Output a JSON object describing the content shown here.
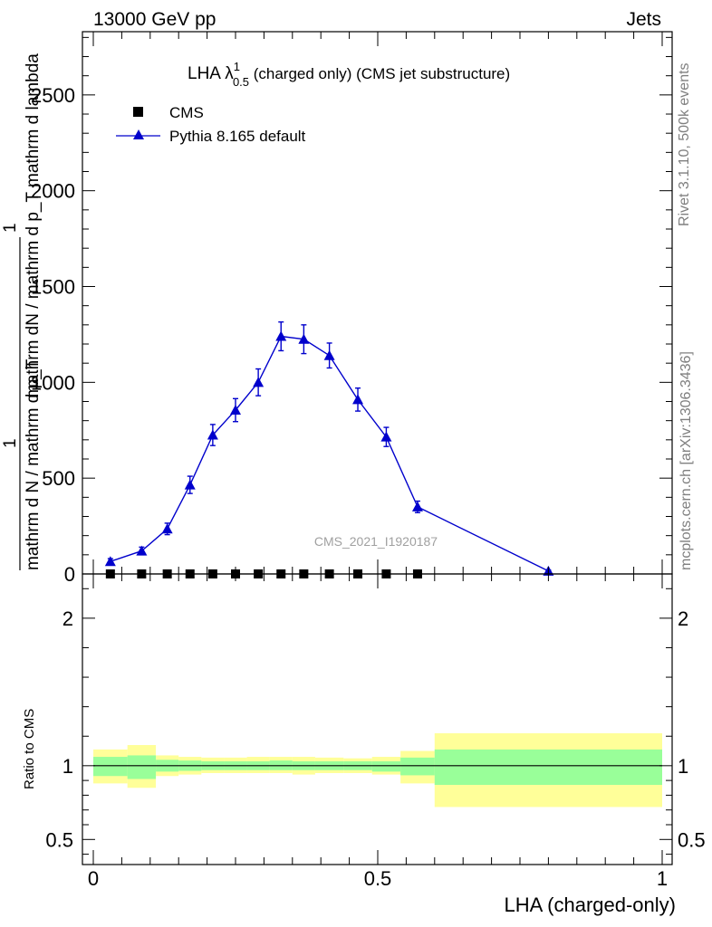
{
  "header": {
    "left": "13000 GeV pp",
    "right": "Jets"
  },
  "side_labels": {
    "rivet": "Rivet 3.1.10,  500k events",
    "mcplots": "mcplots.cern.ch [arXiv:1306.3436]"
  },
  "watermark": "CMS_2021_I1920187",
  "colors": {
    "mc": "#0000cc",
    "data": "#000000",
    "band_inner": "#99ff99",
    "band_outer": "#ffff99"
  },
  "chart_data": [
    {
      "type": "line",
      "title": "LHA λ",
      "title_sup": "1",
      "title_sub": "0.5",
      "title_rest": " (charged only) (CMS jet substructure)",
      "ylabel_main": "mathrm dN / mathrm d p_T mathrm d lambda",
      "ylabel_frac_num": "1",
      "ylabel_frac_den": "mathrm d N / mathrm d p_T",
      "xlim": [
        0,
        1
      ],
      "ylim": [
        0,
        2830
      ],
      "yticks": [
        0,
        500,
        1000,
        1500,
        2000,
        2500
      ],
      "ytick_labels": [
        "0",
        "500",
        "1000",
        "1500",
        "2000",
        "2500"
      ],
      "legend": [
        {
          "label": "CMS",
          "marker": "square"
        },
        {
          "label": "Pythia 8.165 default",
          "marker": "triangle"
        }
      ],
      "legend_position": "top-left",
      "series": [
        {
          "name": "Pythia 8.165 default",
          "x": [
            0.03,
            0.085,
            0.13,
            0.17,
            0.21,
            0.25,
            0.29,
            0.33,
            0.37,
            0.415,
            0.465,
            0.515,
            0.57,
            0.8
          ],
          "y": [
            65,
            120,
            235,
            465,
            725,
            855,
            1000,
            1240,
            1225,
            1140,
            910,
            715,
            350,
            15
          ],
          "err": [
            15,
            20,
            30,
            45,
            55,
            60,
            70,
            75,
            75,
            65,
            60,
            50,
            30,
            5
          ]
        },
        {
          "name": "CMS",
          "x": [
            0.03,
            0.085,
            0.13,
            0.17,
            0.21,
            0.25,
            0.29,
            0.33,
            0.37,
            0.415,
            0.465,
            0.515,
            0.57
          ],
          "y": [
            0,
            0,
            0,
            0,
            0,
            0,
            0,
            0,
            0,
            0,
            0,
            0,
            0
          ]
        }
      ]
    },
    {
      "type": "area",
      "ylabel": "Ratio to CMS",
      "xlabel": "LHA (charged-only)",
      "xlim": [
        0,
        1
      ],
      "ylim": [
        0.33,
        2.3
      ],
      "xticks": [
        0,
        0.5,
        1
      ],
      "xtick_labels": [
        "0",
        "0.5",
        "1"
      ],
      "yticks": [
        0.5,
        1,
        2
      ],
      "ytick_labels": [
        "0.5",
        "1",
        "2"
      ],
      "bins": [
        {
          "x0": 0.0,
          "x1": 0.06,
          "inner": [
            0.93,
            1.06
          ],
          "outer": [
            0.88,
            1.11
          ]
        },
        {
          "x0": 0.06,
          "x1": 0.11,
          "inner": [
            0.91,
            1.07
          ],
          "outer": [
            0.85,
            1.14
          ]
        },
        {
          "x0": 0.11,
          "x1": 0.15,
          "inner": [
            0.96,
            1.04
          ],
          "outer": [
            0.93,
            1.07
          ]
        },
        {
          "x0": 0.15,
          "x1": 0.19,
          "inner": [
            0.965,
            1.035
          ],
          "outer": [
            0.94,
            1.06
          ]
        },
        {
          "x0": 0.19,
          "x1": 0.23,
          "inner": [
            0.97,
            1.03
          ],
          "outer": [
            0.95,
            1.055
          ]
        },
        {
          "x0": 0.23,
          "x1": 0.27,
          "inner": [
            0.97,
            1.03
          ],
          "outer": [
            0.95,
            1.055
          ]
        },
        {
          "x0": 0.27,
          "x1": 0.31,
          "inner": [
            0.97,
            1.03
          ],
          "outer": [
            0.95,
            1.06
          ]
        },
        {
          "x0": 0.31,
          "x1": 0.35,
          "inner": [
            0.97,
            1.035
          ],
          "outer": [
            0.95,
            1.06
          ]
        },
        {
          "x0": 0.35,
          "x1": 0.39,
          "inner": [
            0.97,
            1.03
          ],
          "outer": [
            0.94,
            1.06
          ]
        },
        {
          "x0": 0.39,
          "x1": 0.44,
          "inner": [
            0.97,
            1.03
          ],
          "outer": [
            0.95,
            1.055
          ]
        },
        {
          "x0": 0.44,
          "x1": 0.49,
          "inner": [
            0.97,
            1.03
          ],
          "outer": [
            0.95,
            1.05
          ]
        },
        {
          "x0": 0.49,
          "x1": 0.54,
          "inner": [
            0.96,
            1.03
          ],
          "outer": [
            0.94,
            1.06
          ]
        },
        {
          "x0": 0.54,
          "x1": 0.6,
          "inner": [
            0.935,
            1.055
          ],
          "outer": [
            0.88,
            1.1
          ]
        },
        {
          "x0": 0.6,
          "x1": 1.0,
          "inner": [
            0.87,
            1.11
          ],
          "outer": [
            0.72,
            1.22
          ]
        }
      ],
      "reference_line": 1
    }
  ]
}
